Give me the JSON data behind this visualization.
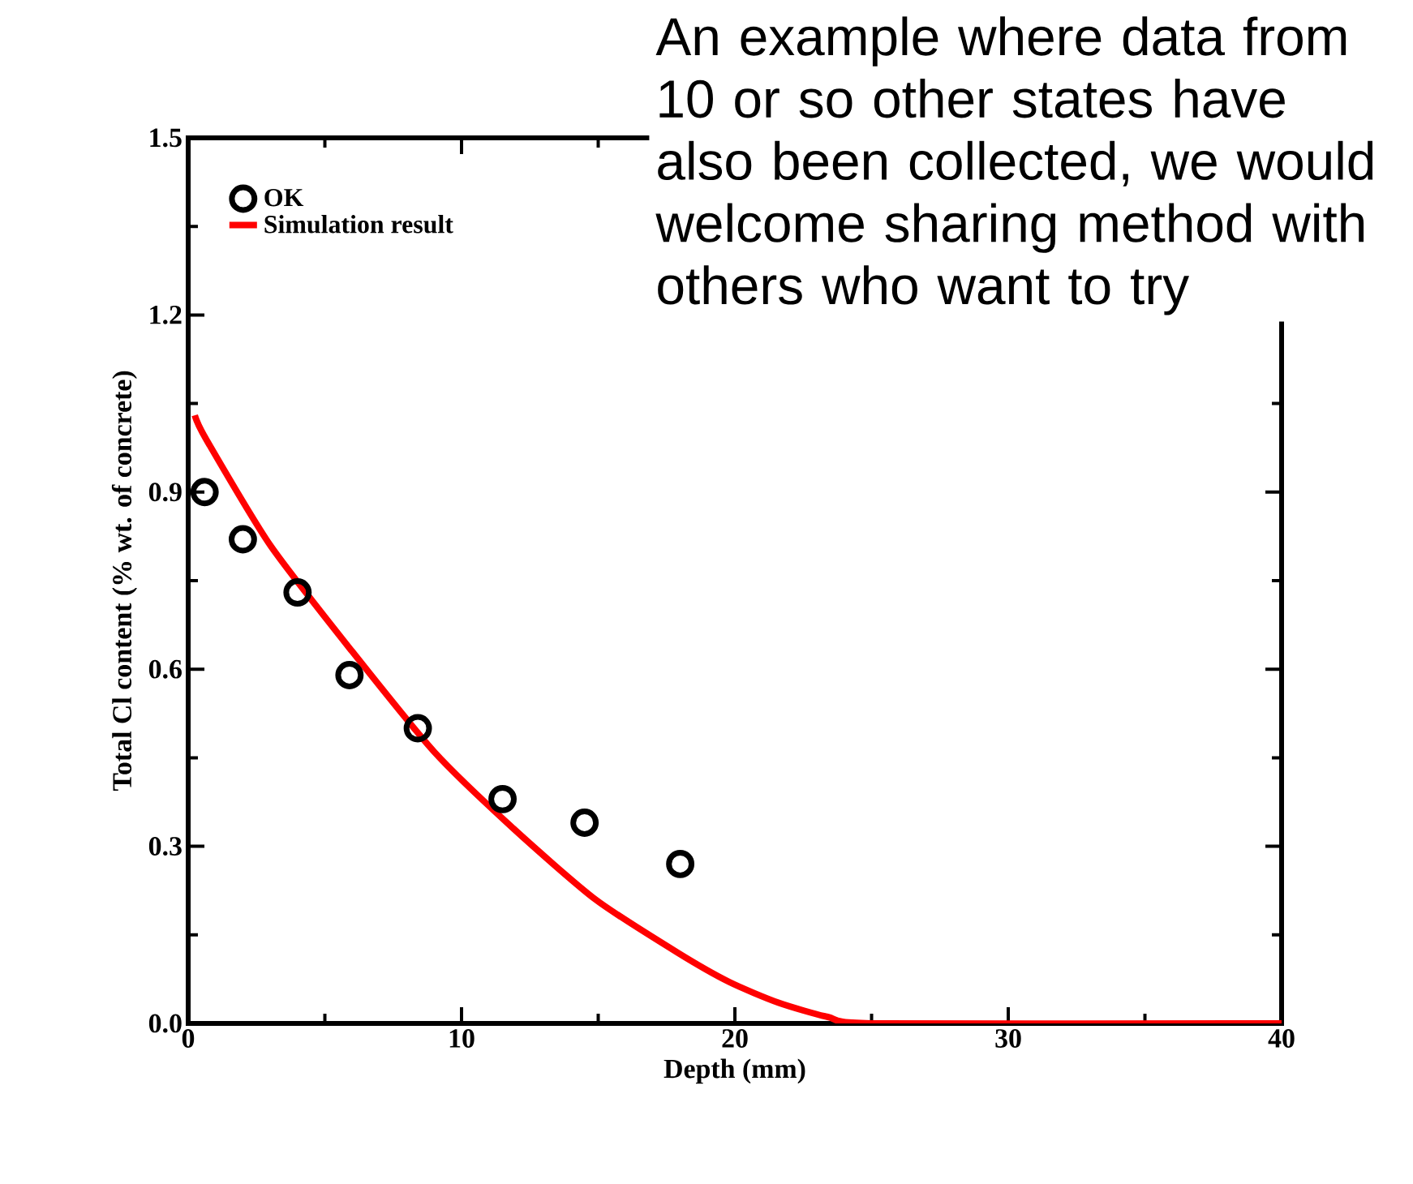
{
  "chart_data": {
    "type": "scatter",
    "xlabel": "Depth (mm)",
    "ylabel": "Total Cl content (% wt. of concrete)",
    "xlim": [
      0,
      40
    ],
    "xticks": [
      0,
      10,
      20,
      30,
      40
    ],
    "ylim": [
      0,
      1.5
    ],
    "yticks": [
      {
        "value": 0,
        "label": "0.0"
      },
      {
        "value": 0.3,
        "label": "0.3"
      },
      {
        "value": 0.6,
        "label": "0.6"
      },
      {
        "value": 0.9,
        "label": "0.9"
      },
      {
        "value": 1.2,
        "label": "1.2"
      },
      {
        "value": 1.5,
        "label": "1.5"
      }
    ],
    "legend": "top left",
    "grid": false,
    "series": [
      {
        "name": "OK",
        "marker": "circle",
        "color": "#000000",
        "x": [
          0.6,
          2.0,
          4.0,
          5.9,
          8.4,
          11.5,
          14.5,
          18.0
        ],
        "values": [
          0.9,
          0.82,
          0.73,
          0.59,
          0.5,
          0.38,
          0.34,
          0.27
        ]
      },
      {
        "name": "Simulation result",
        "type": "line",
        "color": "#ff0000",
        "x": [
          0.24,
          0.65,
          3.0,
          6.0,
          9.0,
          11.9,
          14.9,
          17.9,
          19.8,
          21.6,
          23.4,
          25.2,
          40
        ],
        "values": [
          1.03,
          0.99,
          0.81,
          0.63,
          0.46,
          0.33,
          0.21,
          0.12,
          0.07,
          0.035,
          0.011,
          0,
          0
        ]
      }
    ],
    "annotations": [
      "An example where data from 10 or so other states have also been collected, we would welcome sharing method with others who want to try"
    ]
  }
}
